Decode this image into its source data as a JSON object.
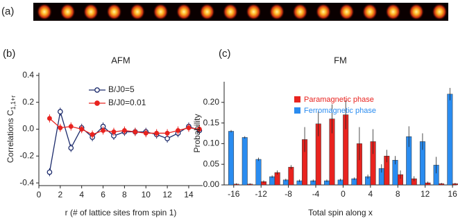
{
  "figure_labels": [
    "(a)",
    "(b)",
    "(c)"
  ],
  "chart_data": [
    {
      "type": "line",
      "title": "AFM",
      "xlabel": "r (# of lattice sites from spin 1)",
      "ylabel": "Correlations C",
      "ylabel_subscript": "1,1+r",
      "x": [
        1,
        2,
        3,
        4,
        5,
        6,
        7,
        8,
        9,
        10,
        11,
        12,
        13,
        14,
        15
      ],
      "series": [
        {
          "name": "B/J0=5",
          "color": "#1b2a6b",
          "marker": "open",
          "values": [
            -0.32,
            0.13,
            -0.14,
            0.01,
            -0.06,
            0.02,
            -0.05,
            -0.02,
            -0.02,
            -0.02,
            -0.04,
            -0.07,
            -0.03,
            0.02,
            -0.01
          ],
          "errors": [
            0.03,
            0.03,
            0.03,
            0.03,
            0.03,
            0.03,
            0.03,
            0.03,
            0.03,
            0.03,
            0.03,
            0.03,
            0.03,
            0.03,
            0.03
          ]
        },
        {
          "name": "B/J0=0.01",
          "color": "#e8231f",
          "marker": "filled",
          "values": [
            0.08,
            0.01,
            0.02,
            0.0,
            -0.04,
            -0.01,
            -0.02,
            -0.01,
            -0.02,
            -0.03,
            -0.03,
            -0.03,
            -0.01,
            0.01,
            0.0
          ],
          "errors": [
            0.03,
            0.03,
            0.03,
            0.03,
            0.03,
            0.03,
            0.03,
            0.03,
            0.03,
            0.03,
            0.03,
            0.03,
            0.03,
            0.03,
            0.03
          ]
        }
      ],
      "xlim": [
        0,
        15.3
      ],
      "xticks": [
        0,
        2,
        4,
        6,
        8,
        10,
        12,
        14
      ],
      "ylim": [
        -0.42,
        0.42
      ],
      "yticks": [
        {
          "value": -0.4,
          "label": "-0.4"
        },
        -0.2,
        {
          "value": 0,
          "label": "0.0"
        },
        0.2,
        0.4
      ]
    },
    {
      "type": "bar",
      "title": "FM",
      "xlabel": "Total spin along x",
      "ylabel": "Probability",
      "x": [
        -16,
        -14,
        -12,
        -10,
        -8,
        -6,
        -4,
        -2,
        0,
        2,
        4,
        6,
        8,
        10,
        12,
        14,
        16
      ],
      "series": [
        {
          "name": "Paramagnetic phase",
          "color": "#e8231f",
          "values": [
            0.002,
            0.002,
            0.008,
            0.03,
            0.043,
            0.11,
            0.148,
            0.16,
            0.17,
            0.1,
            0.105,
            0.07,
            0.025,
            0.015,
            0.005,
            0.003,
            0.003
          ],
          "errors": [
            0.002,
            0.002,
            0.003,
            0.005,
            0.005,
            0.03,
            0.03,
            0.035,
            0.035,
            0.04,
            0.03,
            0.015,
            0.01,
            0.006,
            0.003,
            0.002,
            0.002
          ]
        },
        {
          "name": "Ferromagnetic phase",
          "color": "#2a8cf0",
          "values": [
            0.13,
            0.115,
            0.062,
            0.02,
            0.012,
            0.01,
            0.01,
            0.01,
            0.012,
            0.015,
            0.02,
            0.04,
            0.06,
            0.117,
            0.105,
            0.048,
            0.22
          ],
          "errors": [
            0.003,
            0.003,
            0.004,
            0.003,
            0.003,
            0.003,
            0.003,
            0.003,
            0.003,
            0.003,
            0.005,
            0.01,
            0.01,
            0.025,
            0.02,
            0.02,
            0.015
          ]
        }
      ],
      "xlim": [
        -17.4,
        16.6
      ],
      "xticks": [
        -16,
        -12,
        -8,
        -4,
        0,
        4,
        8,
        12,
        16
      ],
      "ylim": [
        0,
        0.25
      ],
      "yticks": [
        {
          "value": 0,
          "label": "0.00"
        },
        0.05,
        {
          "value": 0.1,
          "label": "0.10"
        },
        0.15,
        {
          "value": 0.2,
          "label": "0.20"
        }
      ]
    }
  ]
}
